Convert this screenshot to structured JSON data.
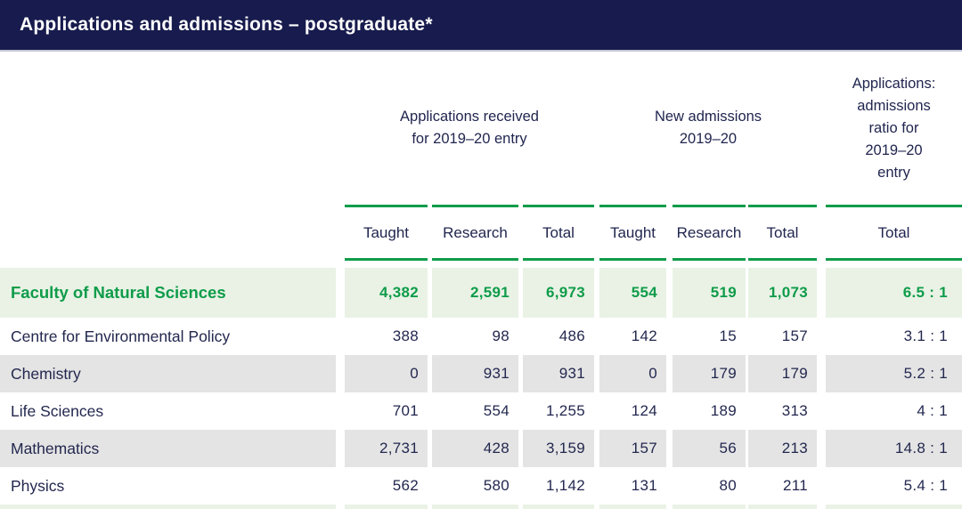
{
  "title": "Applications and admissions – postgraduate*",
  "colors": {
    "header_bar": "#171b4d",
    "accent_green": "#0f9c4a",
    "highlight_row_bg": "#e9f2e5",
    "alt_row_bg": "#e4e4e4",
    "body_text_navy": "#23284f"
  },
  "table": {
    "group_headers": [
      "Applications received\nfor 2019–20 entry",
      "New admissions\n2019–20",
      "Applications:\nadmissions\nratio for\n2019–20\nentry"
    ],
    "columns": [
      "Taught",
      "Research",
      "Total",
      "Taught",
      "Research",
      "Total",
      "Total"
    ],
    "rows": [
      {
        "label": "Faculty of Natural Sciences",
        "values": [
          "4,382",
          "2,591",
          "6,973",
          "554",
          "519",
          "1,073",
          "6.5 : 1"
        ]
      },
      {
        "label": "Centre for Environmental Policy",
        "values": [
          "388",
          "98",
          "486",
          "142",
          "15",
          "157",
          "3.1 : 1"
        ]
      },
      {
        "label": "Chemistry",
        "values": [
          "0",
          "931",
          "931",
          "0",
          "179",
          "179",
          "5.2 : 1"
        ]
      },
      {
        "label": "Life Sciences",
        "values": [
          "701",
          "554",
          "1,255",
          "124",
          "189",
          "313",
          "4 : 1"
        ]
      },
      {
        "label": "Mathematics",
        "values": [
          "2,731",
          "428",
          "3,159",
          "157",
          "56",
          "213",
          "14.8 : 1"
        ]
      },
      {
        "label": "Physics",
        "values": [
          "562",
          "580",
          "1,142",
          "131",
          "80",
          "211",
          "5.4 : 1"
        ]
      }
    ]
  }
}
